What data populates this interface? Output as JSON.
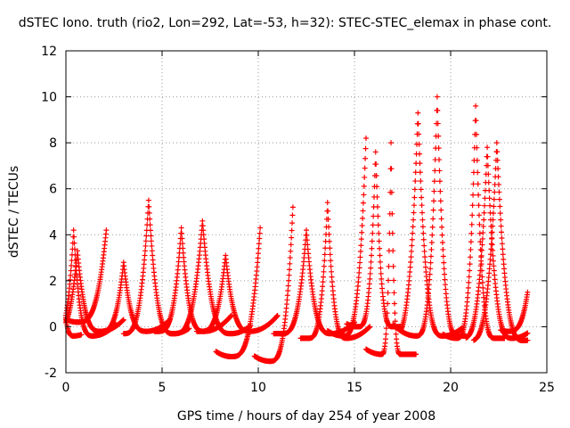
{
  "chart_data": {
    "type": "scatter",
    "title": "dSTEC Iono. truth (rio2, Lon=292, Lat=-53, h=32): STEC-STEC_elemax in phase cont.",
    "xlabel": "GPS time / hours of day 254 of year 2008",
    "ylabel": "dSTEC  / TECUs",
    "xlim": [
      0,
      25
    ],
    "ylim": [
      -2,
      12
    ],
    "xticks": [
      0,
      5,
      10,
      15,
      20,
      25
    ],
    "yticks": [
      -2,
      0,
      2,
      4,
      6,
      8,
      10,
      12
    ],
    "grid": true,
    "marker": "+",
    "color": "#ff0000",
    "series": [
      {
        "peak_time": 0.4,
        "peak_value": 4.2,
        "min_time": 1.4,
        "min_value": -0.4,
        "start": 0.0,
        "end": 2.6
      },
      {
        "peak_time": 0.6,
        "peak_value": 3.3,
        "min_time": 1.8,
        "min_value": -0.2,
        "start": 0.0,
        "end": 3.0
      },
      {
        "peak_time": 2.1,
        "peak_value": 4.2,
        "min_time": 0.6,
        "min_value": 0.2,
        "start": 0.0,
        "end": 2.1
      },
      {
        "peak_time": 0.0,
        "peak_value": 0.4,
        "min_time": 0.4,
        "min_value": -0.4,
        "start": 0.0,
        "end": 0.8
      },
      {
        "peak_time": 3.0,
        "peak_value": 2.8,
        "min_time": 4.2,
        "min_value": -0.2,
        "start": 1.6,
        "end": 5.4
      },
      {
        "peak_time": 4.3,
        "peak_value": 5.5,
        "min_time": 5.6,
        "min_value": -0.3,
        "start": 3.0,
        "end": 6.4
      },
      {
        "peak_time": 6.0,
        "peak_value": 4.3,
        "min_time": 7.2,
        "min_value": -0.2,
        "start": 4.6,
        "end": 8.6
      },
      {
        "peak_time": 7.1,
        "peak_value": 4.6,
        "min_time": 8.6,
        "min_value": -0.3,
        "start": 5.4,
        "end": 9.6
      },
      {
        "peak_time": 8.3,
        "peak_value": 3.1,
        "min_time": 9.6,
        "min_value": -0.2,
        "start": 6.8,
        "end": 11.0
      },
      {
        "peak_time": 10.1,
        "peak_value": 4.3,
        "min_time": 8.6,
        "min_value": -1.3,
        "start": 7.8,
        "end": 10.1
      },
      {
        "peak_time": 11.8,
        "peak_value": 5.2,
        "min_time": 10.6,
        "min_value": -1.5,
        "start": 9.8,
        "end": 11.8
      },
      {
        "peak_time": 12.5,
        "peak_value": 4.2,
        "min_time": 13.8,
        "min_value": -0.3,
        "start": 10.8,
        "end": 15.0
      },
      {
        "peak_time": 13.6,
        "peak_value": 5.4,
        "min_time": 14.6,
        "min_value": -0.5,
        "start": 12.2,
        "end": 15.8
      },
      {
        "peak_time": 15.6,
        "peak_value": 8.2,
        "min_time": 14.4,
        "min_value": -0.4,
        "start": 13.6,
        "end": 15.6
      },
      {
        "peak_time": 16.1,
        "peak_value": 7.6,
        "min_time": 15.2,
        "min_value": 0.0,
        "start": 14.6,
        "end": 17.4
      },
      {
        "peak_time": 16.9,
        "peak_value": 8.0,
        "min_time": 16.4,
        "min_value": -1.2,
        "start": 15.6,
        "end": 18.2
      },
      {
        "peak_time": 18.3,
        "peak_value": 9.3,
        "min_time": 19.6,
        "min_value": -0.4,
        "start": 17.4,
        "end": 20.6
      },
      {
        "peak_time": 19.3,
        "peak_value": 10.0,
        "min_time": 18.2,
        "min_value": -0.4,
        "start": 17.0,
        "end": 20.8
      },
      {
        "peak_time": 21.3,
        "peak_value": 9.6,
        "min_time": 20.3,
        "min_value": -0.5,
        "start": 19.6,
        "end": 22.8
      },
      {
        "peak_time": 21.9,
        "peak_value": 7.8,
        "min_time": 23.2,
        "min_value": -0.5,
        "start": 20.8,
        "end": 24.0
      },
      {
        "peak_time": 22.4,
        "peak_value": 8.0,
        "min_time": 23.8,
        "min_value": -0.6,
        "start": 21.2,
        "end": 24.0
      },
      {
        "peak_time": 24.0,
        "peak_value": 1.5,
        "min_time": 23.0,
        "min_value": -0.2,
        "start": 22.6,
        "end": 24.0
      }
    ]
  }
}
